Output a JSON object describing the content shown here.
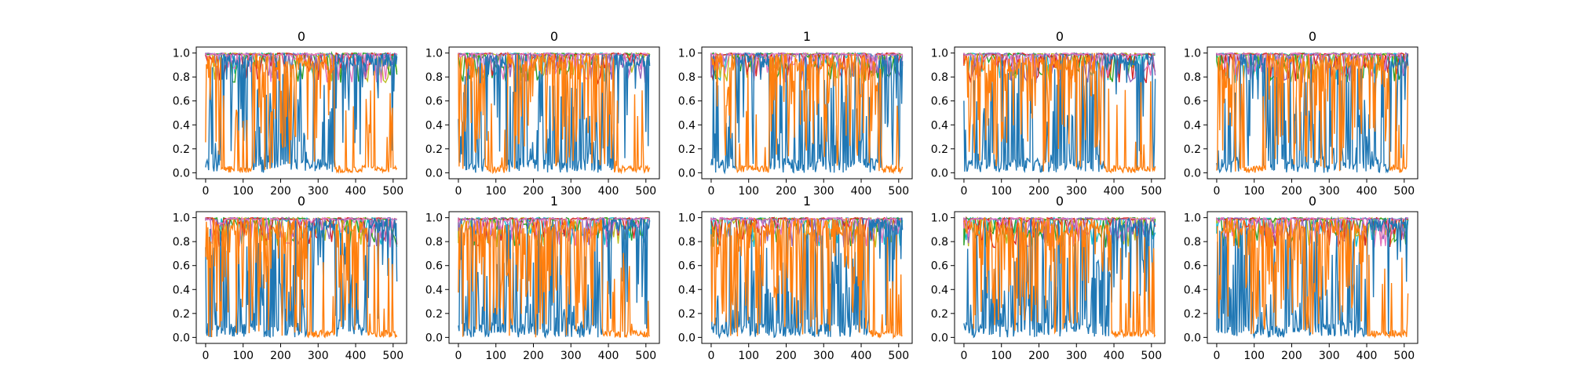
{
  "chart_data": [
    {
      "type": "line",
      "title": "0",
      "x": [
        0,
        511
      ],
      "xlim": [
        -25,
        536
      ],
      "ylim": [
        -0.05,
        1.05
      ],
      "xticks": [
        "0",
        "100",
        "200",
        "300",
        "400",
        "500"
      ],
      "yticks": [
        "0.0",
        "0.2",
        "0.4",
        "0.6",
        "0.8",
        "1.0"
      ],
      "blocks": [
        {
          "start": 0,
          "end": 40,
          "dominant": "orange"
        },
        {
          "start": 40,
          "end": 125,
          "dominant": "blue"
        },
        {
          "start": 125,
          "end": 345,
          "dominant": "orange"
        },
        {
          "start": 345,
          "end": 440,
          "dominant": "blue"
        },
        {
          "start": 440,
          "end": 511,
          "dominant": "blue"
        }
      ],
      "series_colors": [
        "#1f77b4",
        "#ff7f0e",
        "#17becf",
        "#bcbd22",
        "#2ca02c",
        "#d62728",
        "#9467bd",
        "#e377c2"
      ]
    },
    {
      "type": "line",
      "title": "0",
      "x": [
        0,
        511
      ],
      "xlim": [
        -25,
        536
      ],
      "ylim": [
        -0.05,
        1.05
      ],
      "xticks": [
        "0",
        "100",
        "200",
        "300",
        "400",
        "500"
      ],
      "yticks": [
        "0.0",
        "0.2",
        "0.4",
        "0.6",
        "0.8",
        "1.0"
      ],
      "blocks": [
        {
          "start": 0,
          "end": 70,
          "dominant": "orange"
        },
        {
          "start": 70,
          "end": 130,
          "dominant": "blue"
        },
        {
          "start": 130,
          "end": 415,
          "dominant": "orange"
        },
        {
          "start": 415,
          "end": 511,
          "dominant": "blue"
        }
      ],
      "series_colors": [
        "#1f77b4",
        "#ff7f0e",
        "#17becf",
        "#bcbd22",
        "#2ca02c",
        "#d62728",
        "#9467bd",
        "#e377c2"
      ]
    },
    {
      "type": "line",
      "title": "1",
      "x": [
        0,
        511
      ],
      "xlim": [
        -25,
        536
      ],
      "ylim": [
        -0.05,
        1.05
      ],
      "xticks": [
        "0",
        "100",
        "200",
        "300",
        "400",
        "500"
      ],
      "yticks": [
        "0.0",
        "0.2",
        "0.4",
        "0.6",
        "0.8",
        "1.0"
      ],
      "blocks": [
        {
          "start": 0,
          "end": 65,
          "dominant": "orange"
        },
        {
          "start": 65,
          "end": 155,
          "dominant": "blue"
        },
        {
          "start": 155,
          "end": 455,
          "dominant": "orange"
        },
        {
          "start": 455,
          "end": 511,
          "dominant": "blue"
        }
      ],
      "series_colors": [
        "#1f77b4",
        "#ff7f0e",
        "#17becf",
        "#bcbd22",
        "#2ca02c",
        "#d62728",
        "#9467bd",
        "#e377c2"
      ]
    },
    {
      "type": "line",
      "title": "0",
      "x": [
        0,
        511
      ],
      "xlim": [
        -25,
        536
      ],
      "ylim": [
        -0.05,
        1.05
      ],
      "xticks": [
        "0",
        "100",
        "200",
        "300",
        "400",
        "500"
      ],
      "yticks": [
        "0.0",
        "0.2",
        "0.4",
        "0.6",
        "0.8",
        "1.0"
      ],
      "blocks": [
        {
          "start": 0,
          "end": 375,
          "dominant": "orange"
        },
        {
          "start": 375,
          "end": 511,
          "dominant": "blue"
        }
      ],
      "series_colors": [
        "#1f77b4",
        "#ff7f0e",
        "#17becf",
        "#bcbd22",
        "#2ca02c",
        "#d62728",
        "#9467bd",
        "#e377c2"
      ]
    },
    {
      "type": "line",
      "title": "0",
      "x": [
        0,
        511
      ],
      "xlim": [
        -25,
        536
      ],
      "ylim": [
        -0.05,
        1.05
      ],
      "xticks": [
        "0",
        "100",
        "200",
        "300",
        "400",
        "500"
      ],
      "yticks": [
        "0.0",
        "0.2",
        "0.4",
        "0.6",
        "0.8",
        "1.0"
      ],
      "blocks": [
        {
          "start": 0,
          "end": 60,
          "dominant": "orange"
        },
        {
          "start": 60,
          "end": 130,
          "dominant": "blue"
        },
        {
          "start": 130,
          "end": 460,
          "dominant": "orange"
        },
        {
          "start": 460,
          "end": 511,
          "dominant": "blue"
        }
      ],
      "series_colors": [
        "#1f77b4",
        "#ff7f0e",
        "#17becf",
        "#bcbd22",
        "#2ca02c",
        "#d62728",
        "#9467bd",
        "#e377c2"
      ]
    },
    {
      "type": "line",
      "title": "0",
      "x": [
        0,
        511
      ],
      "xlim": [
        -25,
        536
      ],
      "ylim": [
        -0.05,
        1.05
      ],
      "xticks": [
        "0",
        "100",
        "200",
        "300",
        "400",
        "500"
      ],
      "yticks": [
        "0.0",
        "0.2",
        "0.4",
        "0.6",
        "0.8",
        "1.0"
      ],
      "blocks": [
        {
          "start": 0,
          "end": 270,
          "dominant": "orange"
        },
        {
          "start": 270,
          "end": 345,
          "dominant": "blue"
        },
        {
          "start": 345,
          "end": 430,
          "dominant": "orange"
        },
        {
          "start": 430,
          "end": 511,
          "dominant": "blue"
        }
      ],
      "series_colors": [
        "#1f77b4",
        "#ff7f0e",
        "#17becf",
        "#bcbd22",
        "#2ca02c",
        "#d62728",
        "#9467bd",
        "#e377c2"
      ]
    },
    {
      "type": "line",
      "title": "1",
      "x": [
        0,
        511
      ],
      "xlim": [
        -25,
        536
      ],
      "ylim": [
        -0.05,
        1.05
      ],
      "xticks": [
        "0",
        "100",
        "200",
        "300",
        "400",
        "500"
      ],
      "yticks": [
        "0.0",
        "0.2",
        "0.4",
        "0.6",
        "0.8",
        "1.0"
      ],
      "blocks": [
        {
          "start": 0,
          "end": 385,
          "dominant": "orange"
        },
        {
          "start": 385,
          "end": 511,
          "dominant": "blue"
        }
      ],
      "series_colors": [
        "#1f77b4",
        "#ff7f0e",
        "#17becf",
        "#bcbd22",
        "#2ca02c",
        "#d62728",
        "#9467bd",
        "#e377c2"
      ]
    },
    {
      "type": "line",
      "title": "1",
      "x": [
        0,
        511
      ],
      "xlim": [
        -25,
        536
      ],
      "ylim": [
        -0.05,
        1.05
      ],
      "xticks": [
        "0",
        "100",
        "200",
        "300",
        "400",
        "500"
      ],
      "yticks": [
        "0.0",
        "0.2",
        "0.4",
        "0.6",
        "0.8",
        "1.0"
      ],
      "blocks": [
        {
          "start": 0,
          "end": 420,
          "dominant": "orange"
        },
        {
          "start": 420,
          "end": 511,
          "dominant": "blue"
        }
      ],
      "series_colors": [
        "#1f77b4",
        "#ff7f0e",
        "#17becf",
        "#bcbd22",
        "#2ca02c",
        "#d62728",
        "#9467bd",
        "#e377c2"
      ]
    },
    {
      "type": "line",
      "title": "0",
      "x": [
        0,
        511
      ],
      "xlim": [
        -25,
        536
      ],
      "ylim": [
        -0.05,
        1.05
      ],
      "xticks": [
        "0",
        "100",
        "200",
        "300",
        "400",
        "500"
      ],
      "yticks": [
        "0.0",
        "0.2",
        "0.4",
        "0.6",
        "0.8",
        "1.0"
      ],
      "blocks": [
        {
          "start": 0,
          "end": 395,
          "dominant": "orange"
        },
        {
          "start": 395,
          "end": 511,
          "dominant": "blue"
        }
      ],
      "series_colors": [
        "#1f77b4",
        "#ff7f0e",
        "#17becf",
        "#bcbd22",
        "#2ca02c",
        "#d62728",
        "#9467bd",
        "#e377c2"
      ]
    },
    {
      "type": "line",
      "title": "0",
      "x": [
        0,
        511
      ],
      "xlim": [
        -25,
        536
      ],
      "ylim": [
        -0.05,
        1.05
      ],
      "xticks": [
        "0",
        "100",
        "200",
        "300",
        "400",
        "500"
      ],
      "yticks": [
        "0.0",
        "0.2",
        "0.4",
        "0.6",
        "0.8",
        "1.0"
      ],
      "blocks": [
        {
          "start": 0,
          "end": 400,
          "dominant": "orange"
        },
        {
          "start": 400,
          "end": 511,
          "dominant": "blue"
        }
      ],
      "series_colors": [
        "#1f77b4",
        "#ff7f0e",
        "#17becf",
        "#bcbd22",
        "#2ca02c",
        "#d62728",
        "#9467bd",
        "#e377c2"
      ]
    }
  ]
}
